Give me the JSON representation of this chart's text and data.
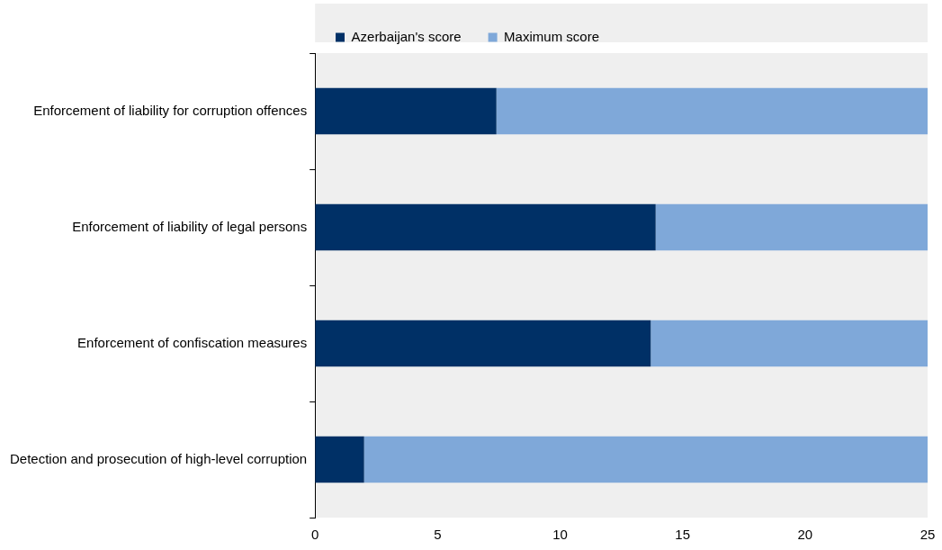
{
  "chart_data": {
    "type": "bar",
    "orientation": "horizontal",
    "stacked": true,
    "legend": "top",
    "categories": [
      "Enforcement of liability for corruption offences",
      "Enforcement of liability of legal persons",
      "Enforcement of confiscation measures",
      "Detection and prosecution of high-level corruption"
    ],
    "series": [
      {
        "name": "Azerbaijan's score",
        "color": "#003066",
        "values": [
          7.4,
          13.9,
          13.7,
          2.0
        ]
      },
      {
        "name": "Maximum score",
        "color": "#7fa8d9",
        "values": [
          17.6,
          11.1,
          11.3,
          23.0
        ]
      }
    ],
    "xlim": [
      0,
      25
    ],
    "xticks": [
      0,
      5,
      10,
      15,
      20,
      25
    ]
  }
}
